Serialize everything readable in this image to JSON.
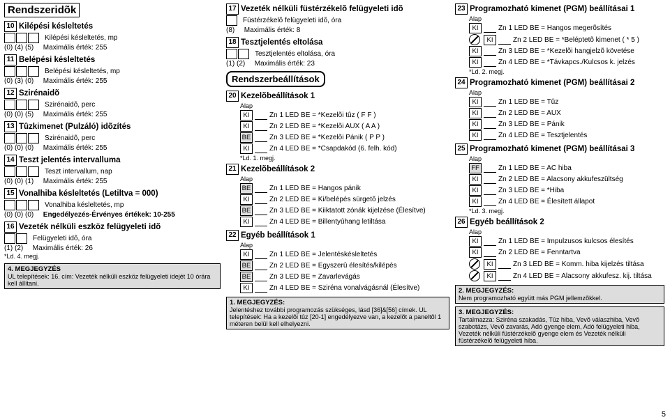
{
  "col1": {
    "mainTitle": "Rendszeridõk",
    "s10": {
      "num": "10",
      "title": "Kilépési késleltetés",
      "label": "Kilépési késleltetés, mp",
      "defs": "(0)  (4)  (5)",
      "max": "Maximális érték: 255"
    },
    "s11": {
      "num": "11",
      "title": "Belépési késleltetés",
      "label": "Belépési késleltetés, mp",
      "defs": "(0)  (3)  (0)",
      "max": "Maximális érték: 255"
    },
    "s12": {
      "num": "12",
      "title": "Szirénaidõ",
      "label": "Szirénaidõ, perc",
      "defs": "(0)  (0)  (5)",
      "max": "Maximális érték: 255"
    },
    "s13": {
      "num": "13",
      "title": "Tûzkimenet (Pulzáló) idõzítés",
      "label": "Szirénaidõ, perc",
      "defs": "(0)  (0)  (0)",
      "max": "Maximális érték: 255"
    },
    "s14": {
      "num": "14",
      "title": "Teszt jelentés intervalluma",
      "label": "Teszt intervallum, nap",
      "defs": "(0)  (0)  (1)",
      "max": "Maximális érték: 255"
    },
    "s15": {
      "num": "15",
      "title": "Vonalhiba késleltetés (Letiltva = 000)",
      "label": "Vonalhiba késleltetés, mp",
      "defs": "(0)  (0)  (0)",
      "max": "Engedélyezés-Érvényes értékek: 10-255"
    },
    "s16": {
      "num": "16",
      "title": "Vezeték nélküli eszköz felügyeleti idõ",
      "label": "Felügyeleti idõ, óra",
      "defs": "(1)  (2)",
      "max": "Maximális érték: 26",
      "extra": "*Ld. 4. megj."
    },
    "note4": {
      "h": "4. MEGJEGYZÉS",
      "t": "UL telepítések: 16. cím: Vezeték nélküli eszköz felügyeleti idejét 10 órára kell állítani."
    }
  },
  "col2": {
    "s17": {
      "num": "17",
      "title": "Vezeték nélküli füstérzékelõ felügyeleti idõ",
      "label": "Füstérzékelõ felügyeleti idõ, óra",
      "defs": "(8)",
      "max": "Maximális érték: 8"
    },
    "s18": {
      "num": "18",
      "title": "Tesztjelentés eltolása",
      "label": "Tesztjelentés eltolása, óra",
      "defs": "(1)  (2)",
      "max": "Maximális érték: 23"
    },
    "sysTitle": "Rendszerbeállítások",
    "s20": {
      "num": "20",
      "title": "Kezelõbeállítások 1",
      "sub": "Alap",
      "lines": [
        {
          "v": "KI",
          "t": "Zn 1 LED BE = *Kezelõi tûz ( F  F )"
        },
        {
          "v": "KI",
          "t": "Zn 2 LED BE = *Kezelõi AUX ( A  A )"
        },
        {
          "v": "BE",
          "g": true,
          "t": "Zn 3 LED BE = *Kezelõi Pánik ( P  P )"
        },
        {
          "v": "KI",
          "t": "Zn 4 LED BE = *Csapdakód (6. felh. kód)"
        }
      ],
      "foot": "*Ld. 1. megj."
    },
    "s21": {
      "num": "21",
      "title": "Kezelõbeállítások 2",
      "sub": "Alap",
      "lines": [
        {
          "v": "BE",
          "g": true,
          "t": "Zn 1 LED BE = Hangos pánik"
        },
        {
          "v": "KI",
          "t": "Zn 2 LED BE = Ki/belépés sürgetõ jelzés"
        },
        {
          "v": "BE",
          "g": true,
          "t": "Zn 3 LED BE = Kiiktatott zónák kijelzése (Élesítve)"
        },
        {
          "v": "KI",
          "t": "Zn 4 LED BE = Billentyûhang letiltása"
        }
      ]
    },
    "s22": {
      "num": "22",
      "title": "Egyéb beállítások 1",
      "sub": "Alap",
      "lines": [
        {
          "v": "KI",
          "t": "Zn 1 LED BE = Jelentéskésleltetés"
        },
        {
          "v": "BE",
          "g": true,
          "t": "Zn 2 LED BE = Egyszerû élesítés/kilépés"
        },
        {
          "v": "BE",
          "g": true,
          "t": "Zn 3 LED BE = Zavarlevágás"
        },
        {
          "v": "KI",
          "t": "Zn 4 LED BE = Sziréna vonalvágásnál (Élesítve)"
        }
      ]
    },
    "note1": {
      "h": "1. MEGJEGYZÉS:",
      "t": "Jelentéshez további programozás szükséges, lásd [36]&[56] címek. UL telepítések: Ha a kezelõi tûz [20-1] engedélyezve van, a kezelõt a paneltõl 1 méteren belül kell elhelyezni."
    }
  },
  "col3": {
    "s23": {
      "num": "23",
      "title": "Programozható kimenet (PGM) beállításai 1",
      "sub": "Alap",
      "lines": [
        {
          "v": "KI",
          "t": "Zn 1 LED BE = Hangos megerõsítés"
        },
        {
          "v": "KI",
          "ban": true,
          "t": "Zn 2 LED BE = *Beléptetõ kimenet ( *  5 )"
        },
        {
          "v": "KI",
          "t": "Zn 3 LED BE = *Kezelõi hangjelzõ követése"
        },
        {
          "v": "KI",
          "t": "Zn 4 LED BE = *Távkapcs./Kulcsos k. jelzés"
        }
      ],
      "foot": "*Ld. 2. megj."
    },
    "s24": {
      "num": "24",
      "title": "Programozható kimenet (PGM) beállításai 2",
      "sub": "Alap",
      "lines": [
        {
          "v": "KI",
          "t": "Zn 1 LED BE = Tûz"
        },
        {
          "v": "KI",
          "t": "Zn 2 LED BE = AUX"
        },
        {
          "v": "KI",
          "t": "Zn 3 LED BE = Pánik"
        },
        {
          "v": "KI",
          "t": "Zn 4 LED BE = Tesztjelentés"
        }
      ]
    },
    "s25": {
      "num": "25",
      "title": "Programozható kimenet (PGM) beállításai 3",
      "sub": "Alap",
      "lines": [
        {
          "v": "FF",
          "g": true,
          "t": "Zn 1 LED BE = AC hiba"
        },
        {
          "v": "KI",
          "t": "Zn 2 LED BE = Alacsony akkufeszültség"
        },
        {
          "v": "KI",
          "t": "Zn 3 LED BE = *Hiba"
        },
        {
          "v": "KI",
          "t": "Zn 4 LED BE = Élesített állapot"
        }
      ],
      "foot": "*Ld. 3. megj."
    },
    "s26": {
      "num": "26",
      "title": "Egyéb beállítások 2",
      "sub": "Alap",
      "lines": [
        {
          "v": "KI",
          "t": "Zn 1 LED BE = Impulzusos kulcsos élesítés"
        },
        {
          "v": "KI",
          "t": "Zn 2 LED BE = Fenntartva"
        },
        {
          "v": "KI",
          "ban": true,
          "t": "Zn 3 LED BE = Komm. hiba kijelzés tiltása"
        },
        {
          "v": "KI",
          "ban": true,
          "t": "Zn 4 LED BE = Alacsony akkufesz. kij. tiltása"
        }
      ]
    },
    "note2": {
      "h": "2. MEGJEGYZÉS:",
      "t": "Nem programozható együtt más PGM jellemzõkkel."
    },
    "note3": {
      "h": "3. MEGJEGYZÉS:",
      "t": "Tartalmazza: Sziréna szakadás, Tûz hiba, Vevõ válaszhiba, Vevõ szabotázs, Vevõ zavarás, Adó gyenge elem, Adó felügyeleti hiba, Vezeték nélküli füstérzékelõ gyenge elem és Vezeték nélküli füstérzékelõ felügyeleti hiba."
    }
  },
  "pageNum": "5"
}
